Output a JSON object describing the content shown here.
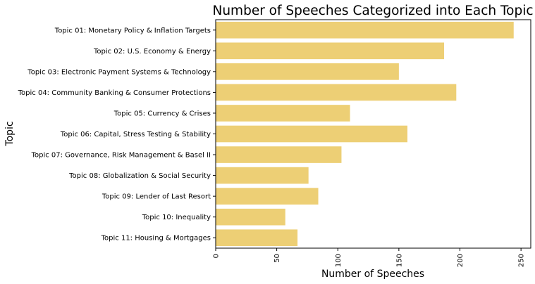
{
  "chart_data": {
    "type": "bar",
    "orientation": "horizontal",
    "title": "Number of Speeches Categorized into Each Topic",
    "xlabel": "Number of Speeches",
    "ylabel": "Topic",
    "categories": [
      "Topic 01: Monetary Policy & Inflation Targets",
      "Topic 02: U.S. Economy & Energy",
      "Topic 03: Electronic Payment Systems & Technology",
      "Topic 04: Community Banking & Consumer Protections",
      "Topic 05: Currency & Crises",
      "Topic 06: Capital, Stress Testing & Stability",
      "Topic 07: Governance, Risk Management & Basel II",
      "Topic 08: Globalization & Social Security",
      "Topic 09: Lender of Last Resort",
      "Topic 10: Inequality",
      "Topic 11: Housing & Mortgages"
    ],
    "values": [
      244,
      187,
      150,
      197,
      110,
      157,
      103,
      76,
      84,
      57,
      67
    ],
    "xlim": [
      0,
      258
    ],
    "xticks": [
      0,
      50,
      100,
      150,
      200,
      250
    ],
    "bar_color": "#EDCF75",
    "grid": false
  }
}
